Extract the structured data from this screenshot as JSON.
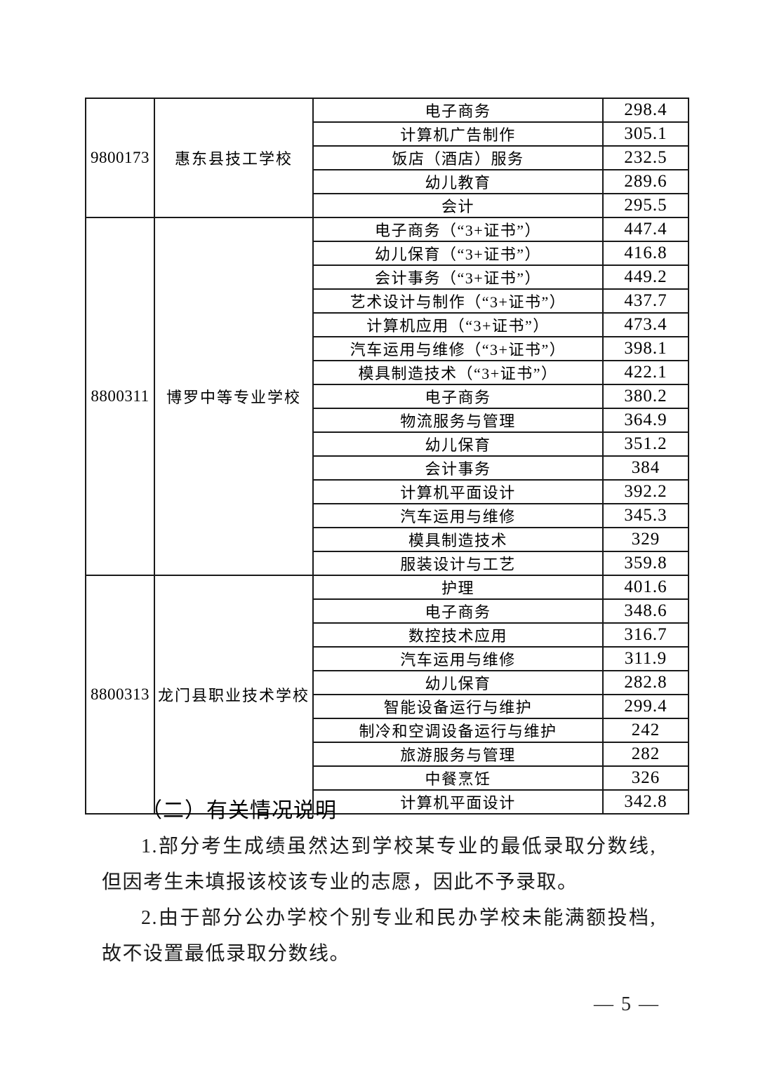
{
  "table": {
    "groups": [
      {
        "code": "9800173",
        "school": "惠东县技工学校",
        "rows": [
          {
            "major": "电子商务",
            "score": "298.4"
          },
          {
            "major": "计算机广告制作",
            "score": "305.1"
          },
          {
            "major": "饭店（酒店）服务",
            "score": "232.5"
          },
          {
            "major": "幼儿教育",
            "score": "289.6"
          },
          {
            "major": "会计",
            "score": "295.5"
          }
        ]
      },
      {
        "code": "8800311",
        "school": "博罗中等专业学校",
        "rows": [
          {
            "major": "电子商务（“3+证书”）",
            "score": "447.4"
          },
          {
            "major": "幼儿保育（“3+证书”）",
            "score": "416.8"
          },
          {
            "major": "会计事务（“3+证书”）",
            "score": "449.2"
          },
          {
            "major": "艺术设计与制作（“3+证书”）",
            "score": "437.7"
          },
          {
            "major": "计算机应用（“3+证书”）",
            "score": "473.4"
          },
          {
            "major": "汽车运用与维修（“3+证书”）",
            "score": "398.1"
          },
          {
            "major": "模具制造技术（“3+证书”）",
            "score": "422.1"
          },
          {
            "major": "电子商务",
            "score": "380.2"
          },
          {
            "major": "物流服务与管理",
            "score": "364.9"
          },
          {
            "major": "幼儿保育",
            "score": "351.2"
          },
          {
            "major": "会计事务",
            "score": "384"
          },
          {
            "major": "计算机平面设计",
            "score": "392.2"
          },
          {
            "major": "汽车运用与维修",
            "score": "345.3"
          },
          {
            "major": "模具制造技术",
            "score": "329"
          },
          {
            "major": "服装设计与工艺",
            "score": "359.8"
          }
        ]
      },
      {
        "code": "8800313",
        "school": "龙门县职业技术学校",
        "rows": [
          {
            "major": "护理",
            "score": "401.6"
          },
          {
            "major": "电子商务",
            "score": "348.6"
          },
          {
            "major": "数控技术应用",
            "score": "316.7"
          },
          {
            "major": "汽车运用与维修",
            "score": "311.9"
          },
          {
            "major": "幼儿保育",
            "score": "282.8"
          },
          {
            "major": "智能设备运行与维护",
            "score": "299.4"
          },
          {
            "major": "制冷和空调设备运行与维护",
            "score": "242"
          },
          {
            "major": "旅游服务与管理",
            "score": "282"
          },
          {
            "major": "中餐烹饪",
            "score": "326"
          },
          {
            "major": "计算机平面设计",
            "score": "342.8"
          }
        ]
      }
    ]
  },
  "notes": {
    "heading": "（二）有关情况说明",
    "para1": "1.部分考生成绩虽然达到学校某专业的最低录取分数线,但因考生未填报该校该专业的志愿，因此不予录取。",
    "para2": "2.由于部分公办学校个别专业和民办学校未能满额投档,故不设置最低录取分数线。"
  },
  "footer": {
    "page_number": "— 5 —"
  }
}
